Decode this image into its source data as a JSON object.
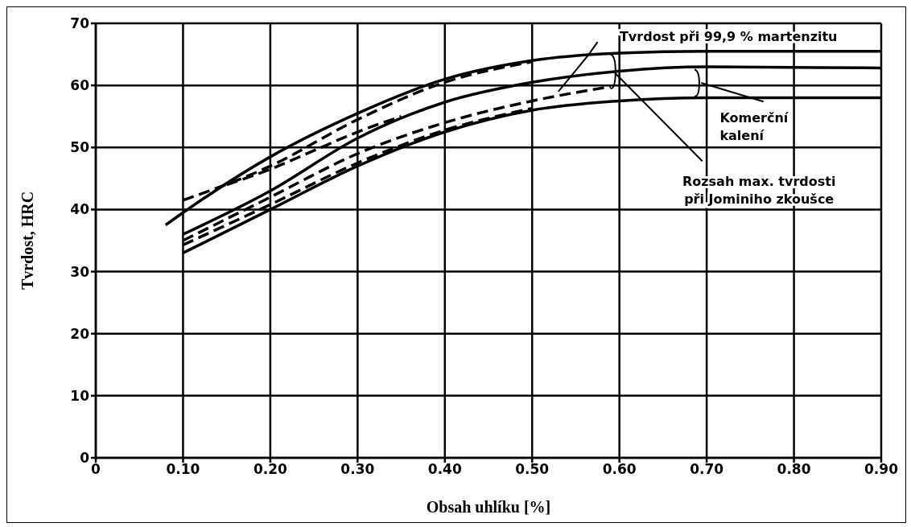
{
  "chart_data": {
    "type": "line",
    "xlabel": "Obsah uhlíku [%]",
    "ylabel": "Tvrdost, HRC",
    "xlim": [
      0,
      0.9
    ],
    "ylim": [
      0,
      70
    ],
    "xticks": [
      0,
      {
        "value": 0.1,
        "label": "0.10"
      },
      {
        "value": 0.2,
        "label": "0.20"
      },
      {
        "value": 0.3,
        "label": "0.30"
      },
      {
        "value": 0.4,
        "label": "0.40"
      },
      {
        "value": 0.5,
        "label": "0.50"
      },
      {
        "value": 0.6,
        "label": "0.60"
      },
      {
        "value": 0.7,
        "label": "0.70"
      },
      {
        "value": 0.8,
        "label": "0.80"
      },
      {
        "value": 0.9,
        "label": "0.90"
      }
    ],
    "yticks": [
      0,
      10,
      20,
      30,
      40,
      50,
      60,
      70
    ],
    "grid": true,
    "marker": "none",
    "series": [
      {
        "color": "#000000",
        "line_style": "solid",
        "x": [
          0.08,
          0.1,
          0.2,
          0.3,
          0.4,
          0.5,
          0.6,
          0.7,
          0.9
        ],
        "values": [
          37.5,
          39.5,
          48.5,
          55.5,
          61,
          64,
          65.2,
          65.5,
          65.5
        ]
      },
      {
        "color": "#000000",
        "line_style": "dashed",
        "x": [
          0.1,
          0.2,
          0.3,
          0.4,
          0.5
        ],
        "values": [
          41.5,
          47,
          54.5,
          60.5,
          63.8
        ]
      },
      {
        "color": "#000000",
        "line_style": "dashed",
        "x": [
          0.15,
          0.2,
          0.25,
          0.3,
          0.35
        ],
        "values": [
          44,
          46.5,
          49.5,
          52.5,
          55
        ]
      },
      {
        "color": "#000000",
        "line_style": "solid",
        "x": [
          0.1,
          0.2,
          0.3,
          0.4,
          0.5,
          0.6,
          0.7,
          0.9
        ],
        "values": [
          36,
          43,
          51.5,
          57.3,
          60.5,
          62.3,
          63,
          62.8
        ]
      },
      {
        "color": "#000000",
        "line_style": "dashed",
        "x": [
          0.1,
          0.2,
          0.3,
          0.4,
          0.5,
          0.59
        ],
        "values": [
          35,
          42,
          49,
          54,
          57.5,
          59.8
        ]
      },
      {
        "color": "#000000",
        "line_style": "dashed",
        "x": [
          0.1,
          0.2,
          0.3,
          0.4,
          0.5
        ],
        "values": [
          34.3,
          40.8,
          47.5,
          52.8,
          56.3
        ]
      },
      {
        "color": "#000000",
        "line_style": "solid",
        "x": [
          0.1,
          0.2,
          0.3,
          0.4,
          0.5,
          0.6,
          0.7,
          0.9
        ],
        "values": [
          33,
          40,
          47,
          52.5,
          56,
          57.5,
          58,
          58
        ]
      }
    ],
    "annotations": [
      {
        "text": "Tvrdost při 99,9 % martenzitu",
        "x": 0.565,
        "y": 65
      },
      "Komerční\nkalení",
      {
        "text": "Rozsah max. tvrdosti\npři Jominiho zkoušce",
        "x": 0.595,
        "y": 62
      }
    ]
  }
}
